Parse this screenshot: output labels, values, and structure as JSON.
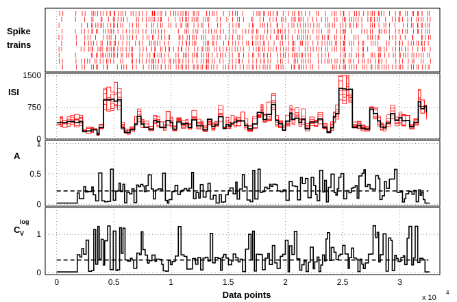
{
  "figure": {
    "xlabel": "Data points",
    "x_exponent": "x 10",
    "x_exponent_power": "4"
  },
  "chart_data": {
    "type": "line",
    "x": {
      "lim": [
        -1000,
        33500
      ],
      "ticks": [
        0,
        5000,
        10000,
        15000,
        20000,
        25000,
        30000
      ],
      "tick_labels": [
        "0",
        "0.5",
        "1",
        "1.5",
        "2",
        "2.5",
        "3"
      ],
      "scale_label": "x 10^4",
      "label": "Data points"
    },
    "panels": [
      {
        "id": "spikes",
        "ylabel_lines": [
          "Spike",
          "trains"
        ],
        "type": "raster",
        "color": "#ff0000",
        "trains": 10
      },
      {
        "id": "isi",
        "ylabel_lines": [
          "ISI"
        ],
        "ylim": [
          0,
          1550
        ],
        "yticks": [
          0,
          750,
          1500
        ],
        "ytick_labels": [
          "0",
          "750",
          "1500"
        ],
        "series": [
          {
            "color": "#ff0000",
            "role": "individual"
          },
          {
            "color": "#000000",
            "role": "mean",
            "values": [
              [
                0,
                380
              ],
              [
                1000,
                420
              ],
              [
                2000,
                410
              ],
              [
                2200,
                250
              ],
              [
                3000,
                180
              ],
              [
                3700,
                280
              ],
              [
                4000,
                900
              ],
              [
                5600,
                220
              ],
              [
                6000,
                270
              ],
              [
                7000,
                430
              ],
              [
                8000,
                360
              ],
              [
                9000,
                420
              ],
              [
                10000,
                320
              ],
              [
                11000,
                420
              ],
              [
                12000,
                350
              ],
              [
                13500,
                430
              ],
              [
                14500,
                350
              ],
              [
                15500,
                430
              ],
              [
                16500,
                270
              ],
              [
                17000,
                480
              ],
              [
                18000,
                610
              ],
              [
                19000,
                360
              ],
              [
                20000,
                460
              ],
              [
                21000,
                420
              ],
              [
                22000,
                350
              ],
              [
                23000,
                260
              ],
              [
                24000,
                460
              ],
              [
                24600,
                1200
              ],
              [
                25800,
                300
              ],
              [
                27000,
                560
              ],
              [
                28000,
                420
              ],
              [
                29000,
                560
              ],
              [
                30000,
                380
              ],
              [
                31000,
                300
              ],
              [
                31500,
                700
              ],
              [
                32500,
                700
              ]
            ]
          }
        ]
      },
      {
        "id": "A",
        "ylabel_lines": [
          "A"
        ],
        "ylim": [
          -0.03,
          1.05
        ],
        "yticks": [
          0,
          0.5,
          1
        ],
        "ytick_labels": [
          "0",
          "0.5",
          "1"
        ],
        "mean_line": 0.22,
        "series": [
          {
            "color": "#000000"
          }
        ]
      },
      {
        "id": "cvlog",
        "ylabel_main": "C",
        "ylabel_sub": "V",
        "ylabel_sup": "log",
        "ylim": [
          -0.05,
          1.7
        ],
        "yticks": [
          0,
          1
        ],
        "ytick_labels": [
          "0",
          "1"
        ],
        "mean_line": 0.33,
        "series": [
          {
            "color": "#000000"
          }
        ]
      }
    ]
  }
}
